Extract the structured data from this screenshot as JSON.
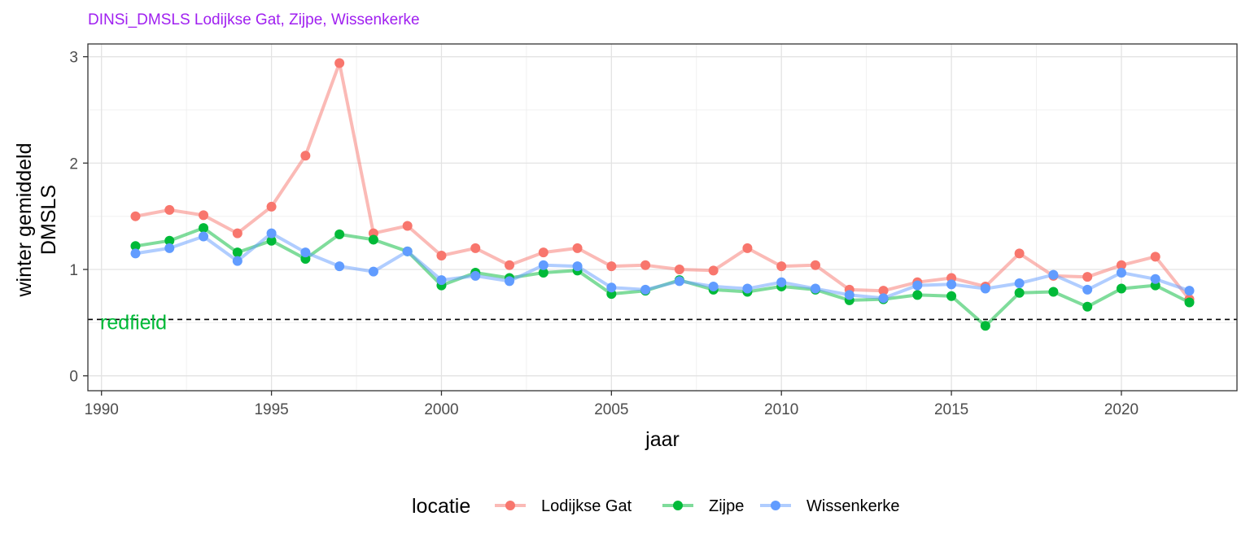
{
  "chart_data": {
    "type": "line",
    "title": "DINSi_DMSLS Lodijkse Gat, Zijpe, Wissenkerke",
    "xlabel": "jaar",
    "ylabel_lines": [
      "winter gemiddeld",
      "DMSLS"
    ],
    "xlim": [
      1989.6,
      2023.4
    ],
    "ylim": [
      -0.14,
      3.12
    ],
    "xticks": [
      1990,
      1995,
      2000,
      2005,
      2010,
      2015,
      2020
    ],
    "yticks": [
      0,
      1,
      2,
      3
    ],
    "grid": true,
    "reference_line": {
      "y": 0.53,
      "label": "redfield",
      "label_color": "#00ba38",
      "style": "dashed"
    },
    "legend": {
      "title": "locatie",
      "position": "bottom"
    },
    "x": [
      1991,
      1992,
      1993,
      1994,
      1995,
      1996,
      1997,
      1998,
      1999,
      2000,
      2001,
      2002,
      2003,
      2004,
      2005,
      2006,
      2007,
      2008,
      2009,
      2010,
      2011,
      2012,
      2013,
      2014,
      2015,
      2016,
      2017,
      2018,
      2019,
      2020,
      2021,
      2022
    ],
    "series": [
      {
        "name": "Lodijkse Gat",
        "color": "#f8766d",
        "values": [
          1.5,
          1.56,
          1.51,
          1.34,
          1.59,
          2.07,
          2.94,
          1.34,
          1.41,
          1.13,
          1.2,
          1.04,
          1.16,
          1.2,
          1.03,
          1.04,
          1.0,
          0.99,
          1.2,
          1.03,
          1.04,
          0.81,
          0.8,
          0.88,
          0.92,
          0.84,
          1.15,
          0.94,
          0.93,
          1.04,
          1.12,
          0.72
        ]
      },
      {
        "name": "Zijpe",
        "color": "#00ba38",
        "values": [
          1.22,
          1.27,
          1.39,
          1.16,
          1.27,
          1.1,
          1.33,
          1.28,
          1.17,
          0.85,
          0.97,
          0.92,
          0.97,
          0.99,
          0.77,
          0.8,
          0.9,
          0.81,
          0.79,
          0.84,
          0.81,
          0.71,
          0.72,
          0.76,
          0.75,
          0.47,
          0.78,
          0.79,
          0.65,
          0.82,
          0.85,
          0.69
        ]
      },
      {
        "name": "Wissenkerke",
        "color": "#619cff",
        "values": [
          1.15,
          1.2,
          1.31,
          1.08,
          1.34,
          1.16,
          1.03,
          0.98,
          1.17,
          0.9,
          0.94,
          0.89,
          1.04,
          1.03,
          0.83,
          0.81,
          0.89,
          0.84,
          0.82,
          0.88,
          0.82,
          0.76,
          0.73,
          0.85,
          0.86,
          0.82,
          0.87,
          0.95,
          0.81,
          0.97,
          0.91,
          0.8
        ]
      }
    ]
  }
}
